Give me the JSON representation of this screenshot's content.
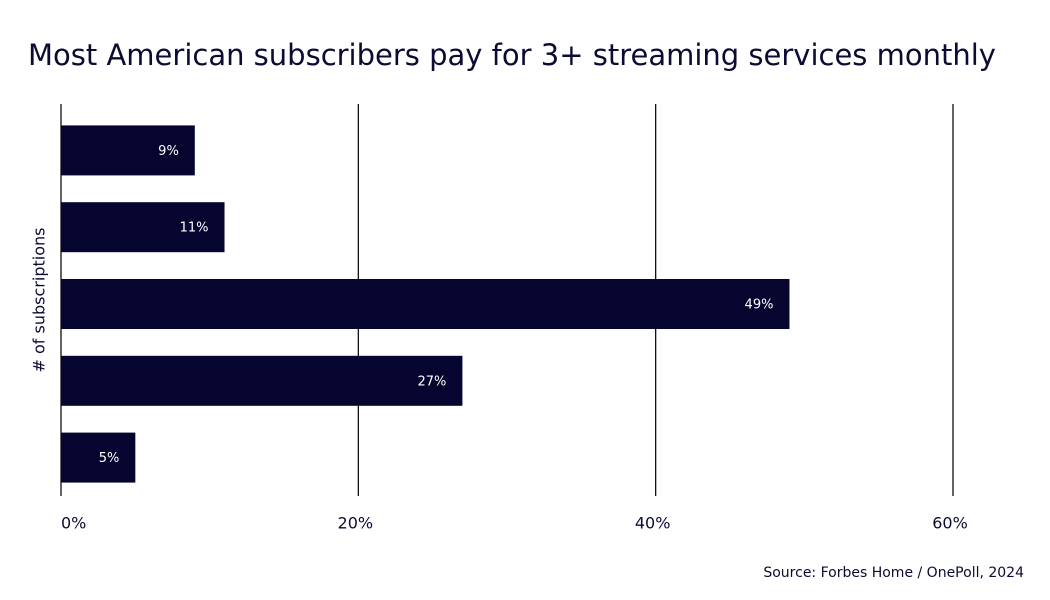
{
  "chart_data": {
    "type": "hbar",
    "title": "Most American subscribers pay for 3+ streaming services monthly",
    "y_label": "# of subscriptions",
    "source": "Source: Forbes Home / OnePoll, 2024",
    "categories": [
      null,
      null,
      null,
      null,
      null
    ],
    "values": [
      9,
      11,
      49,
      27,
      5
    ],
    "value_labels": [
      "9%",
      "11%",
      "49%",
      "27%",
      "5%"
    ],
    "color": "#05052f",
    "xlim": [
      0,
      60
    ],
    "xticks": [
      {
        "value": 0,
        "label": "0%"
      },
      {
        "value": 20,
        "label": "20%"
      },
      {
        "value": 40,
        "label": "40%"
      },
      {
        "value": 60,
        "label": "60%"
      }
    ],
    "grid": true
  }
}
